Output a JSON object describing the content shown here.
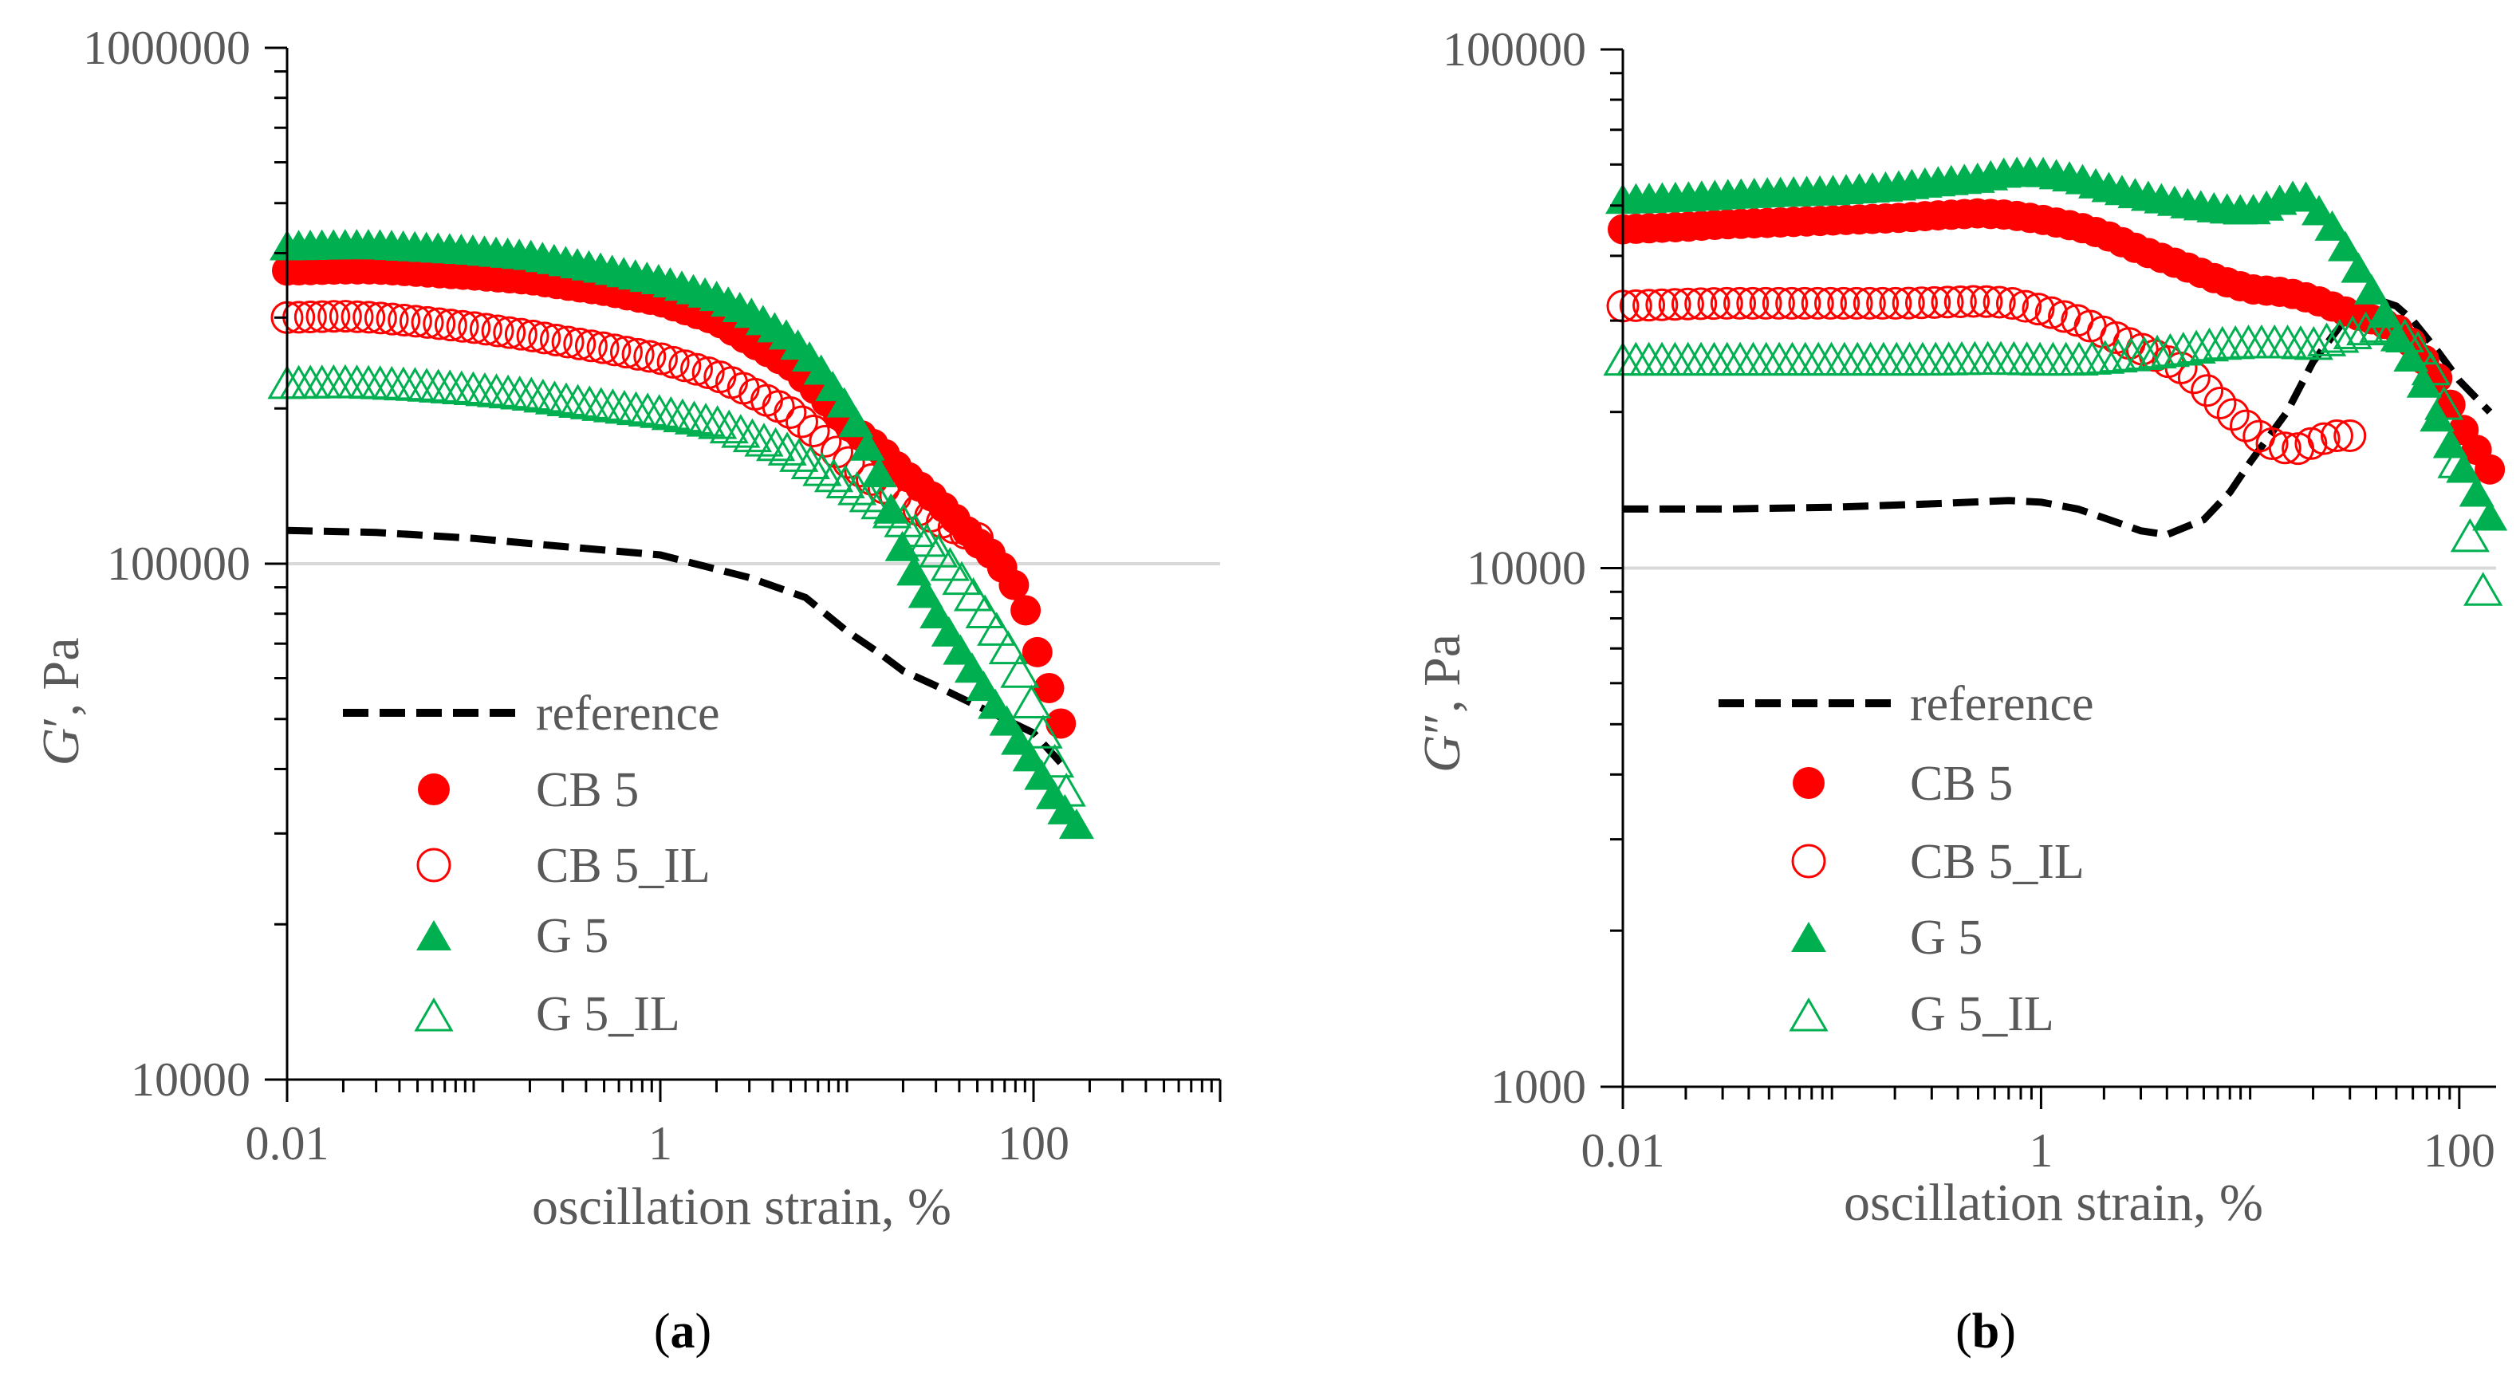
{
  "figure": {
    "label_a_open": "(",
    "label_a_letter": "a",
    "label_a_close": ")",
    "label_b_open": "(",
    "label_b_letter": "b",
    "label_b_close": ")"
  },
  "colors": {
    "reference": "#000000",
    "cb5": "#ff0000",
    "cb5_il": "#ff0000",
    "g5": "#00b050",
    "g5_il": "#00b050",
    "axis": "#000000",
    "gridline": "#d9d9d9",
    "text": "#595959"
  },
  "chart_data": [
    {
      "type": "scatter",
      "panel": "a",
      "xscale": "log",
      "yscale": "log",
      "xlim": [
        0.01,
        1000
      ],
      "ylim": [
        10000,
        1000000
      ],
      "xticks": [
        "0.01",
        "1",
        "100"
      ],
      "xtick_values": [
        0.01,
        1,
        100
      ],
      "yticks": [
        "10000",
        "100000",
        "1000000"
      ],
      "ytick_values": [
        10000,
        100000,
        1000000
      ],
      "xlabel": "oscillation strain, %",
      "ylabel_main": "G",
      "ylabel_prime": "′",
      "ylabel_unit": ", Pa",
      "gridlines_y": [
        100000
      ],
      "legend": [
        "reference",
        "CB 5",
        "CB 5_IL",
        "G 5",
        "G 5_IL"
      ],
      "series": [
        {
          "name": "reference",
          "marker": "dashed-line",
          "x": [
            0.01,
            0.03,
            0.1,
            0.3,
            1,
            3,
            6,
            10,
            15,
            20,
            30,
            50,
            100,
            150
          ],
          "y": [
            116000,
            115000,
            112000,
            108000,
            104000,
            94000,
            86000,
            74000,
            67000,
            62000,
            58000,
            53000,
            47000,
            40000
          ]
        },
        {
          "name": "CB 5",
          "marker": "filled-circle",
          "x": [
            0.01,
            0.02,
            0.03,
            0.05,
            0.1,
            0.2,
            0.3,
            0.5,
            1,
            2,
            3,
            5,
            7,
            10,
            15,
            20,
            30,
            40,
            50,
            60,
            70,
            80,
            90,
            100,
            110,
            120,
            140
          ],
          "y": [
            370000,
            372000,
            372000,
            368000,
            362000,
            355000,
            347000,
            338000,
            322000,
            296000,
            270000,
            242000,
            215000,
            186000,
            167000,
            150000,
            133000,
            120000,
            110000,
            104000,
            97000,
            90000,
            82000,
            72000,
            63000,
            58000,
            49000
          ]
        },
        {
          "name": "CB 5_IL",
          "marker": "open-circle",
          "x": [
            0.01,
            0.02,
            0.03,
            0.05,
            0.1,
            0.2,
            0.3,
            0.5,
            1,
            2,
            3,
            5,
            7,
            10,
            15,
            20,
            30,
            40,
            50
          ],
          "y": [
            300000,
            302000,
            300000,
            295000,
            287000,
            277000,
            270000,
            262000,
            250000,
            232000,
            216000,
            196000,
            178000,
            158000,
            142000,
            132000,
            122000,
            116000,
            112000
          ]
        },
        {
          "name": "G 5",
          "marker": "filled-triangle",
          "x": [
            0.01,
            0.02,
            0.03,
            0.05,
            0.1,
            0.2,
            0.3,
            0.5,
            1,
            2,
            3,
            5,
            7,
            10,
            12,
            15,
            18,
            20,
            25,
            30,
            40,
            50,
            60,
            70,
            80,
            100,
            130,
            170
          ],
          "y": [
            410000,
            412000,
            412000,
            408000,
            402000,
            393000,
            383000,
            370000,
            352000,
            327000,
            305000,
            272000,
            240000,
            200000,
            178000,
            148000,
            120000,
            106000,
            90000,
            80000,
            68000,
            60000,
            54000,
            50000,
            46000,
            41000,
            35000,
            31000
          ]
        },
        {
          "name": "G 5_IL",
          "marker": "open-triangle",
          "x": [
            0.01,
            0.02,
            0.03,
            0.05,
            0.1,
            0.2,
            0.3,
            0.5,
            1,
            2,
            3,
            5,
            7,
            10,
            15,
            20,
            30,
            40,
            50,
            60,
            70,
            80,
            90,
            100,
            120,
            150
          ],
          "y": [
            222000,
            223000,
            222000,
            220000,
            216000,
            211000,
            206000,
            201000,
            195000,
            186000,
            176000,
            164000,
            152000,
            142000,
            130000,
            120000,
            106000,
            94000,
            84000,
            76000,
            70000,
            64000,
            58000,
            52000,
            44000,
            36000
          ]
        }
      ]
    },
    {
      "type": "scatter",
      "panel": "b",
      "xscale": "log",
      "yscale": "log",
      "xlim": [
        0.01,
        150
      ],
      "ylim": [
        1000,
        100000
      ],
      "xticks": [
        "0.01",
        "1",
        "100"
      ],
      "xtick_values": [
        0.01,
        1,
        100
      ],
      "yticks": [
        "1000",
        "10000",
        "100000"
      ],
      "ytick_values": [
        1000,
        10000,
        100000
      ],
      "xlabel": "oscillation strain, %",
      "ylabel_main": "G",
      "ylabel_prime": "″",
      "ylabel_unit": ", Pa",
      "gridlines_y": [
        10000
      ],
      "legend": [
        "reference",
        "CB 5",
        "CB 5_IL",
        "G 5",
        "G 5_IL"
      ],
      "series": [
        {
          "name": "reference",
          "marker": "dashed-line",
          "x": [
            0.01,
            0.03,
            0.1,
            0.3,
            0.7,
            1,
            1.5,
            2,
            3,
            4,
            6,
            8,
            10,
            15,
            20,
            30,
            40,
            50,
            60,
            80,
            100,
            140
          ],
          "y": [
            13000,
            13000,
            13100,
            13300,
            13500,
            13400,
            13000,
            12500,
            11800,
            11600,
            12400,
            14000,
            16000,
            20000,
            25000,
            31000,
            33000,
            32000,
            30000,
            26000,
            23000,
            20000
          ]
        },
        {
          "name": "CB 5",
          "marker": "filled-circle",
          "x": [
            0.01,
            0.02,
            0.03,
            0.05,
            0.1,
            0.2,
            0.3,
            0.5,
            0.7,
            1,
            1.5,
            2,
            3,
            5,
            7,
            10,
            15,
            20,
            30,
            40,
            50,
            60,
            80,
            100,
            120,
            140
          ],
          "y": [
            45000,
            45500,
            46000,
            46300,
            46800,
            47300,
            47800,
            48300,
            48000,
            47000,
            45500,
            44000,
            41000,
            38000,
            36000,
            34500,
            34000,
            33000,
            31000,
            30000,
            29000,
            27000,
            23000,
            19000,
            17000,
            15500
          ]
        },
        {
          "name": "CB 5_IL",
          "marker": "open-circle",
          "x": [
            0.01,
            0.02,
            0.03,
            0.05,
            0.1,
            0.2,
            0.3,
            0.5,
            0.7,
            1,
            1.5,
            2,
            3,
            5,
            7,
            10,
            12,
            15,
            18,
            20,
            25,
            30
          ],
          "y": [
            32000,
            32300,
            32400,
            32400,
            32400,
            32400,
            32500,
            32700,
            32500,
            31500,
            30000,
            28500,
            26500,
            24000,
            21000,
            18500,
            17500,
            17000,
            17000,
            17500,
            18000,
            18000
          ]
        },
        {
          "name": "G 5",
          "marker": "filled-triangle",
          "x": [
            0.01,
            0.02,
            0.03,
            0.05,
            0.1,
            0.2,
            0.3,
            0.5,
            0.7,
            1,
            1.5,
            2,
            3,
            5,
            7,
            10,
            12,
            15,
            18,
            20,
            25,
            30,
            40,
            50,
            60,
            70,
            80,
            100,
            140
          ],
          "y": [
            51000,
            51500,
            52000,
            52500,
            53000,
            54000,
            55000,
            56000,
            57500,
            57500,
            56000,
            54000,
            52000,
            50000,
            49000,
            48500,
            49500,
            51500,
            52000,
            50000,
            45000,
            40000,
            33000,
            28000,
            25000,
            22000,
            19000,
            16000,
            12500
          ]
        },
        {
          "name": "G 5_IL",
          "marker": "open-triangle",
          "x": [
            0.01,
            0.02,
            0.03,
            0.05,
            0.1,
            0.2,
            0.3,
            0.5,
            0.7,
            1,
            1.5,
            2,
            3,
            5,
            7,
            10,
            15,
            20,
            30,
            40,
            50,
            60,
            70,
            80,
            90,
            100,
            110,
            120,
            130
          ],
          "y": [
            25000,
            25000,
            25000,
            25000,
            25000,
            25000,
            25000,
            25100,
            25100,
            25000,
            25000,
            25200,
            25600,
            26200,
            26800,
            27000,
            27000,
            26800,
            28000,
            29000,
            28500,
            27000,
            25000,
            22000,
            19000,
            15000,
            12000,
            10000,
            9000
          ]
        }
      ]
    }
  ]
}
